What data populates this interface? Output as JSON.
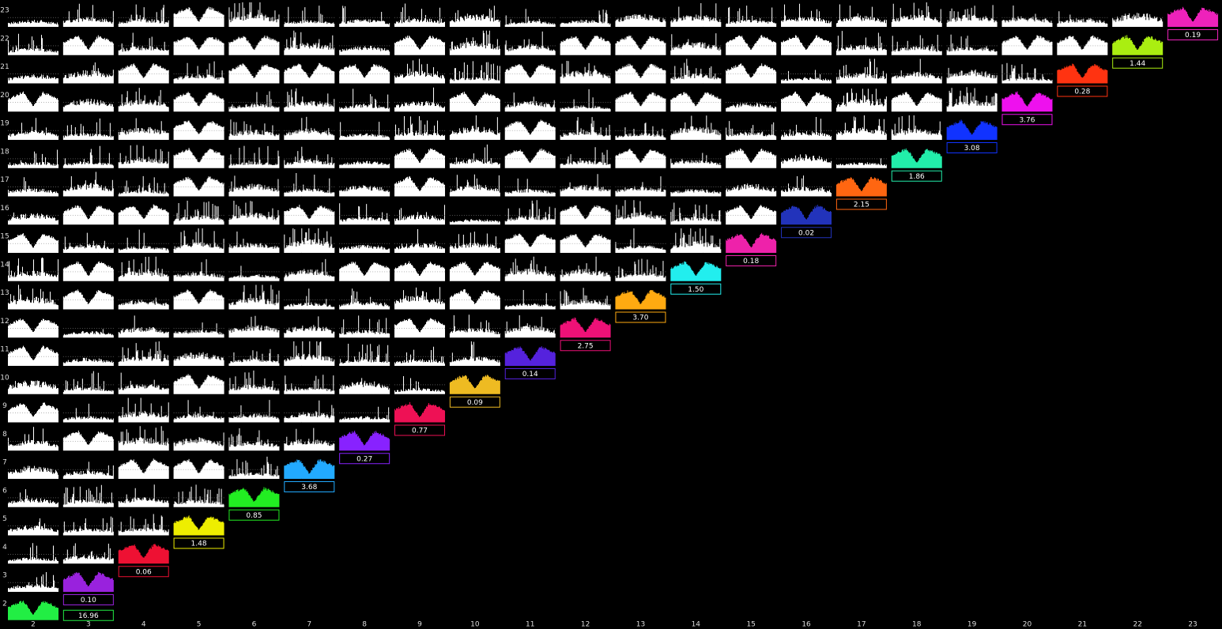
{
  "matrix": {
    "row_labels": [
      "2",
      "3",
      "4",
      "5",
      "6",
      "7",
      "8",
      "9",
      "10",
      "11",
      "12",
      "13",
      "14",
      "15",
      "16",
      "17",
      "18",
      "19",
      "20",
      "21",
      "22",
      "23"
    ],
    "col_labels": [
      "2",
      "3",
      "4",
      "5",
      "6",
      "7",
      "8",
      "9",
      "10",
      "11",
      "12",
      "13",
      "14",
      "15",
      "16",
      "17",
      "18",
      "19",
      "20",
      "21",
      "22",
      "23"
    ],
    "diagonal": [
      {
        "label": "16.96",
        "color": "#22ee44"
      },
      {
        "label": "0.10",
        "color": "#9922dd"
      },
      {
        "label": "0.06",
        "color": "#ee1133"
      },
      {
        "label": "1.48",
        "color": "#eeee00"
      },
      {
        "label": "0.85",
        "color": "#22ee22"
      },
      {
        "label": "3.68",
        "color": "#22aaff"
      },
      {
        "label": "0.27",
        "color": "#8822ff"
      },
      {
        "label": "0.77",
        "color": "#ee1155"
      },
      {
        "label": "0.09",
        "color": "#eebb22"
      },
      {
        "label": "0.14",
        "color": "#5522dd"
      },
      {
        "label": "2.75",
        "color": "#ee1177"
      },
      {
        "label": "3.70",
        "color": "#ffaa11"
      },
      {
        "label": "1.50",
        "color": "#22eeee"
      },
      {
        "label": "0.18",
        "color": "#ee22aa"
      },
      {
        "label": "0.02",
        "color": "#2233bb"
      },
      {
        "label": "2.15",
        "color": "#ff6611"
      },
      {
        "label": "1.86",
        "color": "#22eeaa"
      },
      {
        "label": "3.08",
        "color": "#1133ff"
      },
      {
        "label": "3.76",
        "color": "#ee11ee"
      },
      {
        "label": "0.28",
        "color": "#ff3311"
      },
      {
        "label": "1.44",
        "color": "#aaee11"
      },
      {
        "label": "0.19",
        "color": "#ee22bb"
      }
    ]
  }
}
